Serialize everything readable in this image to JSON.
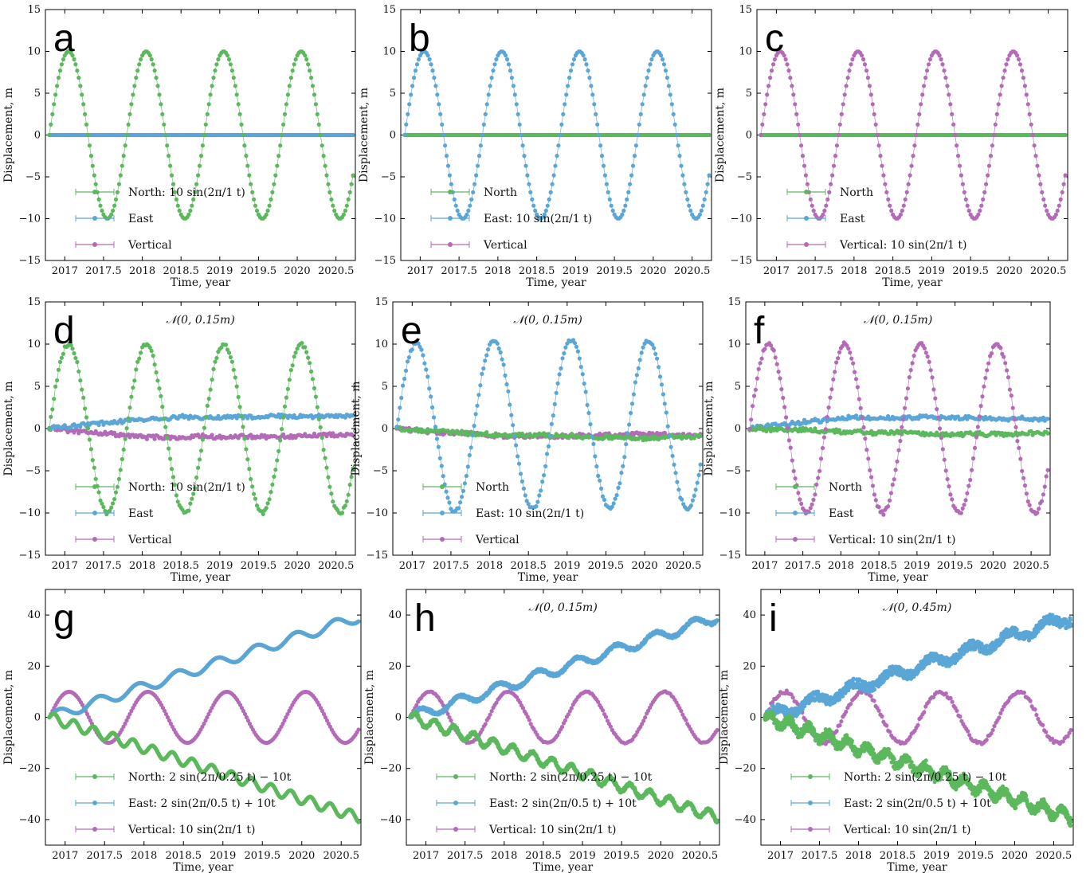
{
  "colors": {
    "North": "#5cb85c",
    "East": "#5aa6d6",
    "Vertical": "#b36bb8"
  },
  "chart_data": [
    {
      "panel": "a",
      "type": "scatter",
      "xlabel": "Time, year",
      "ylabel": "Displacement, m",
      "xlim": [
        2016.75,
        2020.75
      ],
      "ylim": [
        -15,
        15
      ],
      "xticks": [
        "2017",
        "2017.5",
        "2018",
        "2018.5",
        "2019",
        "2019.5",
        "2020",
        "2020.5"
      ],
      "yticks": [
        "15",
        "10",
        "5",
        "0",
        "−5",
        "−10",
        "−15"
      ],
      "annotation": "",
      "legend_position": "lower-left",
      "series": [
        {
          "name": "North",
          "legend_label": "North: 10 sin(2π/1 t)",
          "model": {
            "sin_amp": 10,
            "period": 1,
            "trend": 0,
            "sin2_amp": 0,
            "period2": 1,
            "drift": 0,
            "noise": 0
          }
        },
        {
          "name": "East",
          "legend_label": "East",
          "model": {
            "sin_amp": 0,
            "period": 1,
            "trend": 0,
            "sin2_amp": 0,
            "period2": 1,
            "drift": 0,
            "noise": 0
          }
        },
        {
          "name": "Vertical",
          "legend_label": "Vertical",
          "model": {
            "sin_amp": 0,
            "period": 1,
            "trend": 0,
            "sin2_amp": 0,
            "period2": 1,
            "drift": 0,
            "noise": 0
          }
        }
      ]
    },
    {
      "panel": "b",
      "type": "scatter",
      "xlabel": "Time, year",
      "ylabel": "Displacement, m",
      "xlim": [
        2016.75,
        2020.75
      ],
      "ylim": [
        -15,
        15
      ],
      "xticks": [
        "2017",
        "2017.5",
        "2018",
        "2018.5",
        "2019",
        "2019.5",
        "2020",
        "2020.5"
      ],
      "yticks": [
        "15",
        "10",
        "5",
        "0",
        "−5",
        "−10",
        "−15"
      ],
      "annotation": "",
      "legend_position": "lower-left",
      "series": [
        {
          "name": "North",
          "legend_label": "North",
          "model": {
            "sin_amp": 0,
            "period": 1,
            "trend": 0,
            "sin2_amp": 0,
            "period2": 1,
            "drift": 0,
            "noise": 0
          }
        },
        {
          "name": "East",
          "legend_label": "East: 10 sin(2π/1 t)",
          "model": {
            "sin_amp": 10,
            "period": 1,
            "trend": 0,
            "sin2_amp": 0,
            "period2": 1,
            "drift": 0,
            "noise": 0
          }
        },
        {
          "name": "Vertical",
          "legend_label": "Vertical",
          "model": {
            "sin_amp": 0,
            "period": 1,
            "trend": 0,
            "sin2_amp": 0,
            "period2": 1,
            "drift": 0,
            "noise": 0
          }
        }
      ]
    },
    {
      "panel": "c",
      "type": "scatter",
      "xlabel": "Time, year",
      "ylabel": "Displacement, m",
      "xlim": [
        2016.75,
        2020.75
      ],
      "ylim": [
        -15,
        15
      ],
      "xticks": [
        "2017",
        "2017.5",
        "2018",
        "2018.5",
        "2019",
        "2019.5",
        "2020",
        "2020.5"
      ],
      "yticks": [
        "15",
        "10",
        "5",
        "0",
        "−5",
        "−10",
        "−15"
      ],
      "annotation": "",
      "legend_position": "lower-left",
      "series": [
        {
          "name": "North",
          "legend_label": "North",
          "model": {
            "sin_amp": 0,
            "period": 1,
            "trend": 0,
            "sin2_amp": 0,
            "period2": 1,
            "drift": 0,
            "noise": 0
          }
        },
        {
          "name": "East",
          "legend_label": "East",
          "model": {
            "sin_amp": 0,
            "period": 1,
            "trend": 0,
            "sin2_amp": 0,
            "period2": 1,
            "drift": 0,
            "noise": 0
          }
        },
        {
          "name": "Vertical",
          "legend_label": "Vertical: 10 sin(2π/1 t)",
          "model": {
            "sin_amp": 10,
            "period": 1,
            "trend": 0,
            "sin2_amp": 0,
            "period2": 1,
            "drift": 0,
            "noise": 0
          }
        }
      ]
    },
    {
      "panel": "d",
      "type": "scatter",
      "xlabel": "Time, year",
      "ylabel": "Displacement, m",
      "xlim": [
        2016.75,
        2020.75
      ],
      "ylim": [
        -15,
        15
      ],
      "xticks": [
        "2017",
        "2017.5",
        "2018",
        "2018.5",
        "2019",
        "2019.5",
        "2020",
        "2020.5"
      ],
      "yticks": [
        "15",
        "10",
        "5",
        "0",
        "−5",
        "−10",
        "−15"
      ],
      "annotation": "𝒩(0, 0.15m)",
      "legend_position": "lower-left",
      "series": [
        {
          "name": "North",
          "legend_label": "North: 10 sin(2π/1 t)",
          "model": {
            "sin_amp": 10,
            "period": 1,
            "trend": 0,
            "sin2_amp": 0,
            "period2": 1,
            "drift": 0,
            "noise": 0.15
          }
        },
        {
          "name": "East",
          "legend_label": "East",
          "model": {
            "sin_amp": 0,
            "period": 1,
            "trend": 0,
            "sin2_amp": 0,
            "period2": 1,
            "drift": 1.3,
            "noise": 0.15
          }
        },
        {
          "name": "Vertical",
          "legend_label": "Vertical",
          "model": {
            "sin_amp": 0,
            "period": 1,
            "trend": 0,
            "sin2_amp": 0,
            "period2": 1,
            "drift": -1.4,
            "noise": 0.15
          }
        }
      ]
    },
    {
      "panel": "e",
      "type": "scatter",
      "xlabel": "Time, year",
      "ylabel": "Displacement, m",
      "xlim": [
        2016.75,
        2020.75
      ],
      "ylim": [
        -15,
        15
      ],
      "xticks": [
        "2017",
        "2017.5",
        "2018",
        "2018.5",
        "2019",
        "2019.5",
        "2020",
        "2020.5"
      ],
      "yticks": [
        "15",
        "10",
        "5",
        "0",
        "−5",
        "−10",
        "−15"
      ],
      "annotation": "𝒩(0, 0.15m)",
      "legend_position": "lower-left",
      "series": [
        {
          "name": "North",
          "legend_label": "North",
          "model": {
            "sin_amp": 0,
            "period": 1,
            "trend": 0,
            "sin2_amp": 0,
            "period2": 1,
            "drift": -0.4,
            "noise": 0.15
          }
        },
        {
          "name": "East",
          "legend_label": "East: 10 sin(2π/1 t)",
          "model": {
            "sin_amp": 10,
            "period": 1,
            "trend": 0,
            "sin2_amp": 0,
            "period2": 1,
            "drift": 0.4,
            "noise": 0.15
          }
        },
        {
          "name": "Vertical",
          "legend_label": "Vertical",
          "model": {
            "sin_amp": 0,
            "period": 1,
            "trend": 0,
            "sin2_amp": 0,
            "period2": 1,
            "drift": -1.0,
            "noise": 0.15
          }
        }
      ]
    },
    {
      "panel": "f",
      "type": "scatter",
      "xlabel": "Time, year",
      "ylabel": "Displacement, m",
      "xlim": [
        2016.75,
        2020.75
      ],
      "ylim": [
        -15,
        15
      ],
      "xticks": [
        "2017",
        "2017.5",
        "2018",
        "2018.5",
        "2019",
        "2019.5",
        "2020",
        "2020.5"
      ],
      "yticks": [
        "15",
        "10",
        "5",
        "0",
        "−5",
        "−10",
        "−15"
      ],
      "annotation": "𝒩(0, 0.15m)",
      "legend_position": "lower-left",
      "series": [
        {
          "name": "North",
          "legend_label": "North",
          "model": {
            "sin_amp": 0,
            "period": 1,
            "trend": 0,
            "sin2_amp": 0,
            "period2": 1,
            "drift": -0.5,
            "noise": 0.15
          }
        },
        {
          "name": "East",
          "legend_label": "East",
          "model": {
            "sin_amp": 0,
            "period": 1,
            "trend": 0,
            "sin2_amp": 0,
            "period2": 1,
            "drift": 1.3,
            "noise": 0.15
          }
        },
        {
          "name": "Vertical",
          "legend_label": "Vertical: 10 sin(2π/1 t)",
          "model": {
            "sin_amp": 10,
            "period": 1,
            "trend": 0,
            "sin2_amp": 0,
            "period2": 1,
            "drift": 0,
            "noise": 0.15
          }
        }
      ]
    },
    {
      "panel": "g",
      "type": "scatter",
      "xlabel": "Time, year",
      "ylabel": "Displacement, m",
      "xlim": [
        2016.75,
        2020.75
      ],
      "ylim": [
        -50,
        50
      ],
      "xticks": [
        "2017",
        "2017.5",
        "2018",
        "2018.5",
        "2019",
        "2019.5",
        "2020",
        "2020.5"
      ],
      "yticks": [
        "40",
        "20",
        "0",
        "−20",
        "−40"
      ],
      "annotation": "",
      "legend_position": "lower-left",
      "series": [
        {
          "name": "North",
          "legend_label": "North: 2 sin(2π/0.25 t) − 10t",
          "model": {
            "sin_amp": 0,
            "period": 1,
            "trend": -10,
            "sin2_amp": 2,
            "period2": 0.25,
            "drift": 0,
            "noise": 0
          }
        },
        {
          "name": "East",
          "legend_label": "East: 2 sin(2π/0.5 t) + 10t",
          "model": {
            "sin_amp": 0,
            "period": 1,
            "trend": 10,
            "sin2_amp": 2,
            "period2": 0.5,
            "drift": 0,
            "noise": 0
          }
        },
        {
          "name": "Vertical",
          "legend_label": "Vertical: 10 sin(2π/1 t)",
          "model": {
            "sin_amp": 10,
            "period": 1,
            "trend": 0,
            "sin2_amp": 0,
            "period2": 1,
            "drift": 0,
            "noise": 0
          }
        }
      ]
    },
    {
      "panel": "h",
      "type": "scatter",
      "xlabel": "Time, year",
      "ylabel": "Displacement, m",
      "xlim": [
        2016.75,
        2020.75
      ],
      "ylim": [
        -50,
        50
      ],
      "xticks": [
        "2017",
        "2017.5",
        "2018",
        "2018.5",
        "2019",
        "2019.5",
        "2020",
        "2020.5"
      ],
      "yticks": [
        "40",
        "20",
        "0",
        "−20",
        "−40"
      ],
      "annotation": "𝒩(0, 0.15m)",
      "legend_position": "lower-left",
      "series": [
        {
          "name": "North",
          "legend_label": "North: 2 sin(2π/0.25 t) − 10t",
          "model": {
            "sin_amp": 0,
            "period": 1,
            "trend": -10,
            "sin2_amp": 2,
            "period2": 0.25,
            "drift": 0,
            "noise": 0.15
          }
        },
        {
          "name": "East",
          "legend_label": "East: 2 sin(2π/0.5 t) + 10t",
          "model": {
            "sin_amp": 0,
            "period": 1,
            "trend": 10,
            "sin2_amp": 2,
            "period2": 0.5,
            "drift": 0,
            "noise": 0.15
          }
        },
        {
          "name": "Vertical",
          "legend_label": "Vertical: 10 sin(2π/1 t)",
          "model": {
            "sin_amp": 10,
            "period": 1,
            "trend": 0,
            "sin2_amp": 0,
            "period2": 1,
            "drift": 0,
            "noise": 0.15
          }
        }
      ]
    },
    {
      "panel": "i",
      "type": "scatter",
      "xlabel": "Time, year",
      "ylabel": "Displacement, m",
      "xlim": [
        2016.75,
        2020.75
      ],
      "ylim": [
        -50,
        50
      ],
      "xticks": [
        "2017",
        "2017.5",
        "2018",
        "2018.5",
        "2019",
        "2019.5",
        "2020",
        "2020.5"
      ],
      "yticks": [
        "40",
        "20",
        "0",
        "−20",
        "−40"
      ],
      "annotation": "𝒩(0, 0.45m)",
      "legend_position": "lower-left",
      "series": [
        {
          "name": "North",
          "legend_label": "North: 2 sin(2π/0.25 t) − 10t",
          "model": {
            "sin_amp": 0,
            "period": 1,
            "trend": -10,
            "sin2_amp": 2,
            "period2": 0.25,
            "drift": 0,
            "noise": 0.45
          }
        },
        {
          "name": "East",
          "legend_label": "East: 2 sin(2π/0.5 t) + 10t",
          "model": {
            "sin_amp": 0,
            "period": 1,
            "trend": 10,
            "sin2_amp": 2,
            "period2": 0.5,
            "drift": 0,
            "noise": 0.45
          }
        },
        {
          "name": "Vertical",
          "legend_label": "Vertical: 10 sin(2π/1 t)",
          "model": {
            "sin_amp": 10,
            "period": 1,
            "trend": 0,
            "sin2_amp": 0,
            "period2": 1,
            "drift": 0,
            "noise": 0.45
          }
        }
      ]
    }
  ]
}
